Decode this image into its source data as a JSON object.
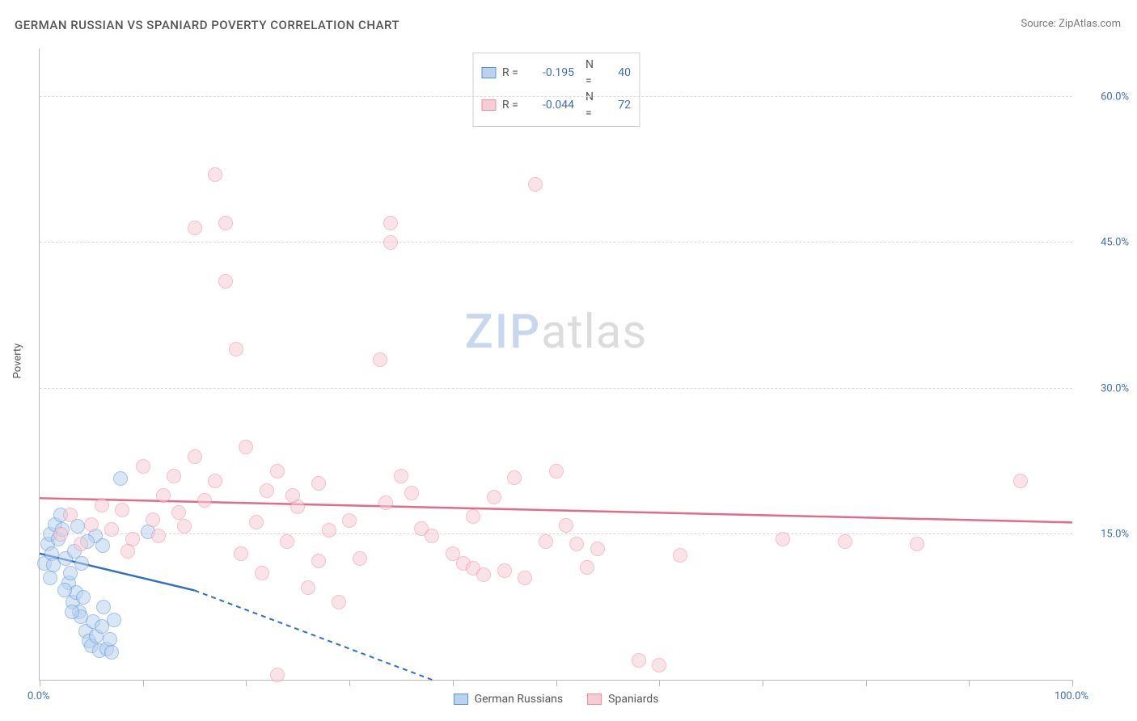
{
  "title": "GERMAN RUSSIAN VS SPANIARD POVERTY CORRELATION CHART",
  "source": "Source: ZipAtlas.com",
  "ylabel": "Poverty",
  "watermark_a": "ZIP",
  "watermark_b": "atlas",
  "chart": {
    "type": "scatter",
    "xlim": [
      0,
      100
    ],
    "ylim": [
      0,
      65
    ],
    "x_tick_positions": [
      0,
      10,
      20,
      30,
      40,
      50,
      60,
      70,
      80,
      90,
      100
    ],
    "x_tick_labels": {
      "left": "0.0%",
      "right": "100.0%"
    },
    "y_gridlines": [
      15,
      30,
      45,
      60
    ],
    "y_tick_labels": [
      "15.0%",
      "30.0%",
      "45.0%",
      "60.0%"
    ],
    "background_color": "#ffffff",
    "grid_color": "#d8d8d8",
    "axis_color": "#b9b9b9",
    "marker_radius": 9,
    "series": [
      {
        "name": "German Russians",
        "fill": "#b9d2ef",
        "stroke": "#5c93d4",
        "fill_opacity": 0.55,
        "r_label": "R =",
        "r_value": "-0.195",
        "n_label": "N =",
        "n_value": "40",
        "trend": {
          "x1": 0,
          "y1": 13,
          "x2_solid": 15,
          "y2_solid": 9.2,
          "x2_dash": 38,
          "y2_dash": 0,
          "color": "#2f6fc0"
        },
        "points": [
          [
            0.5,
            12
          ],
          [
            0.8,
            14
          ],
          [
            1.0,
            15
          ],
          [
            1.2,
            13
          ],
          [
            1.5,
            16
          ],
          [
            1.8,
            14.5
          ],
          [
            2.0,
            17
          ],
          [
            2.2,
            15.5
          ],
          [
            2.5,
            12.5
          ],
          [
            2.8,
            10
          ],
          [
            3.0,
            11
          ],
          [
            3.2,
            8
          ],
          [
            3.5,
            9
          ],
          [
            3.8,
            7
          ],
          [
            4.0,
            6.5
          ],
          [
            4.2,
            8.5
          ],
          [
            4.5,
            5
          ],
          [
            4.8,
            4
          ],
          [
            5.0,
            3.5
          ],
          [
            5.2,
            6
          ],
          [
            5.5,
            4.5
          ],
          [
            5.8,
            3
          ],
          [
            6.0,
            5.5
          ],
          [
            6.2,
            7.5
          ],
          [
            6.5,
            3.2
          ],
          [
            6.8,
            4.2
          ],
          [
            7.0,
            2.8
          ],
          [
            7.2,
            6.2
          ],
          [
            1.0,
            10.5
          ],
          [
            1.3,
            11.8
          ],
          [
            3.4,
            13.2
          ],
          [
            4.1,
            12.0
          ],
          [
            5.4,
            14.8
          ],
          [
            6.1,
            13.8
          ],
          [
            2.4,
            9.2
          ],
          [
            3.1,
            7.0
          ],
          [
            3.7,
            15.8
          ],
          [
            4.6,
            14.2
          ],
          [
            7.8,
            20.7
          ],
          [
            10.5,
            15.2
          ]
        ]
      },
      {
        "name": "Spaniards",
        "fill": "#f6cdd7",
        "stroke": "#e88fa6",
        "fill_opacity": 0.55,
        "r_label": "R =",
        "r_value": "-0.044",
        "n_label": "N =",
        "n_value": "72",
        "trend": {
          "x1": 0,
          "y1": 18.7,
          "x2_solid": 100,
          "y2_solid": 16.2,
          "x2_dash": 100,
          "y2_dash": 16.2,
          "color": "#e26a8d"
        },
        "points": [
          [
            2,
            15
          ],
          [
            3,
            17
          ],
          [
            4,
            14
          ],
          [
            5,
            16
          ],
          [
            6,
            18
          ],
          [
            7,
            15.5
          ],
          [
            8,
            17.5
          ],
          [
            9,
            14.5
          ],
          [
            10,
            22
          ],
          [
            11,
            16.5
          ],
          [
            12,
            19
          ],
          [
            13,
            21
          ],
          [
            14,
            15.8
          ],
          [
            15,
            23
          ],
          [
            16,
            18.5
          ],
          [
            17,
            20.5
          ],
          [
            18,
            47
          ],
          [
            17,
            52
          ],
          [
            18,
            41
          ],
          [
            19,
            34
          ],
          [
            15,
            46.5
          ],
          [
            20,
            24
          ],
          [
            21,
            16.2
          ],
          [
            22,
            19.5
          ],
          [
            23,
            21.5
          ],
          [
            24,
            14.2
          ],
          [
            25,
            17.8
          ],
          [
            26,
            9.5
          ],
          [
            27,
            20.2
          ],
          [
            28,
            15.4
          ],
          [
            29,
            8
          ],
          [
            33,
            33
          ],
          [
            34,
            45
          ],
          [
            34,
            47
          ],
          [
            35,
            21
          ],
          [
            36,
            19.2
          ],
          [
            37,
            15.6
          ],
          [
            40,
            13
          ],
          [
            41,
            12
          ],
          [
            42,
            11.5
          ],
          [
            42,
            16.8
          ],
          [
            43,
            10.8
          ],
          [
            44,
            18.8
          ],
          [
            45,
            11.2
          ],
          [
            46,
            20.8
          ],
          [
            47,
            10.5
          ],
          [
            48,
            51
          ],
          [
            49,
            14.2
          ],
          [
            50,
            21.5
          ],
          [
            51,
            15.9
          ],
          [
            52,
            14
          ],
          [
            53,
            11.6
          ],
          [
            54,
            13.5
          ],
          [
            58,
            2
          ],
          [
            60,
            1.5
          ],
          [
            62,
            12.8
          ],
          [
            72,
            14.5
          ],
          [
            78,
            14.2
          ],
          [
            85,
            14.0
          ],
          [
            95,
            20.5
          ],
          [
            8.5,
            13.2
          ],
          [
            11.5,
            14.8
          ],
          [
            13.5,
            17.2
          ],
          [
            19.5,
            13.0
          ],
          [
            21.5,
            11.0
          ],
          [
            24.5,
            19.0
          ],
          [
            31,
            12.5
          ],
          [
            33.5,
            18.2
          ],
          [
            38,
            14.8
          ],
          [
            23,
            0.5
          ],
          [
            27,
            12.2
          ],
          [
            30,
            16.4
          ]
        ]
      }
    ]
  },
  "bottom_legend": [
    {
      "label": "German Russians",
      "fill": "#b9d2ef",
      "stroke": "#5c93d4"
    },
    {
      "label": "Spaniards",
      "fill": "#f6cdd7",
      "stroke": "#e88fa6"
    }
  ]
}
